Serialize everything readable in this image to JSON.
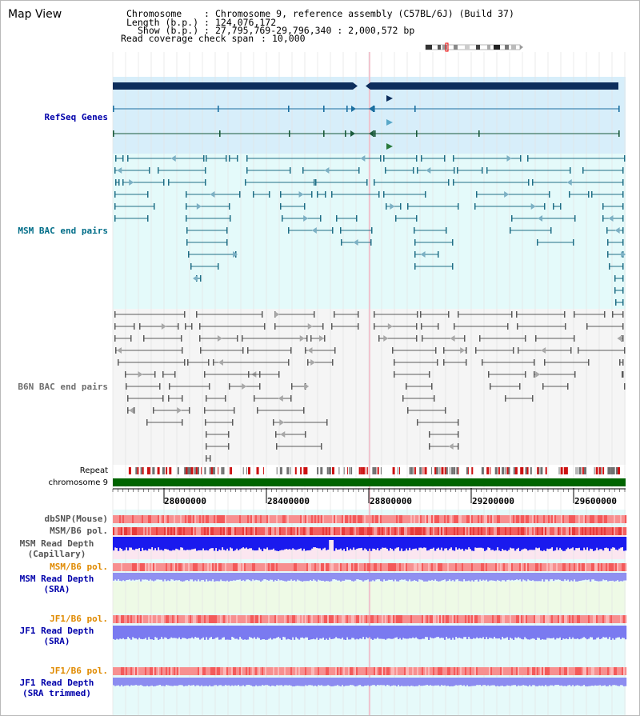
{
  "view": {
    "title": "Map View"
  },
  "header": {
    "chromosome_label": "Chromosome",
    "chromosome_value": "Chromosome 9, reference assembly (C57BL/6J) (Build 37)",
    "length_label": "Length (b.p.)",
    "length_value": "124,076,172",
    "show_label": "Show (b.p.)",
    "show_value": "27,795,769-29,796,340 : 2,000,572 bp",
    "coverage_label": "Read coverage check span",
    "coverage_value": "10,000"
  },
  "tracks": {
    "refseq": "RefSeq Genes",
    "msm_bac": "MSM BAC end pairs",
    "b6n_bac": "B6N BAC end pairs",
    "repeat": "Repeat",
    "chromosome": "chromosome 9",
    "dbsnp": "dbSNP(Mouse)",
    "msm_b6_pol": "MSM/B6 pol.",
    "msm_depth_cap_1": "MSM Read Depth",
    "msm_depth_cap_2": "(Capillary)",
    "msm_b6_pol_sra": "MSM/B6 pol.",
    "msm_depth_sra_1": "MSM Read Depth",
    "msm_depth_sra_2": "(SRA)",
    "jf1_b6_pol": "JF1/B6 pol.",
    "jf1_depth_sra_1": "JF1 Read Depth",
    "jf1_depth_sra_2": "(SRA)",
    "jf1_b6_pol_trim": "JF1/B6 pol.",
    "jf1_depth_trim_1": "JF1 Read Depth",
    "jf1_depth_trim_2": "(SRA trimmed)"
  },
  "axis": {
    "ticks": [
      "28000000",
      "28400000",
      "28800000",
      "29200000",
      "29600000"
    ]
  },
  "colors": {
    "refseq_bg": "#d7eefa",
    "msm_bg": "#e4fafa",
    "b6n_bg": "#f5f5f5",
    "chromosome_bar": "#006400",
    "repeat_red": "#cc1111",
    "repeat_gray": "#707070",
    "msm_label": "#006d88",
    "refseq_label": "#0000aa",
    "orange_label": "#e08a00",
    "blue_label": "#0000aa"
  }
}
